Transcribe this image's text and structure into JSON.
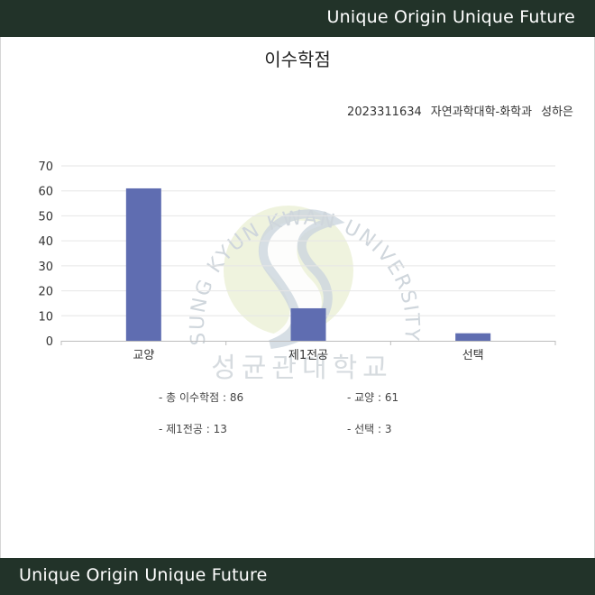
{
  "header": {
    "slogan": "Unique Origin Unique Future"
  },
  "footer": {
    "slogan": "Unique Origin Unique Future"
  },
  "page": {
    "title": "이수학점"
  },
  "student": {
    "id": "2023311634",
    "department": "자연과학대학-화학과",
    "name": "성하은"
  },
  "watermark": {
    "arc_text": "SUNG KYUN KWAN UNIVERSITY",
    "korean": "성균관대학교"
  },
  "chart_data": {
    "type": "bar",
    "categories": [
      "교양",
      "제1전공",
      "선택"
    ],
    "values": [
      61,
      13,
      3
    ],
    "ylim": [
      0,
      70
    ],
    "yticks": [
      0,
      10,
      20,
      30,
      40,
      50,
      60,
      70
    ],
    "grid": true,
    "bar_color": "#5f6db1",
    "title": "",
    "xlabel": "",
    "ylabel": ""
  },
  "summary": {
    "total": "- 총 이수학점 : 86",
    "general": "- 교양 : 61",
    "major": "- 제1전공 : 13",
    "elective": "- 선택 : 3"
  },
  "colors": {
    "bar_dark": "#223329",
    "bar": "#5f6db1",
    "grid": "#e6e6e6",
    "watermark_green": "#d6e3a6",
    "watermark_blue": "#c0ccd6"
  }
}
